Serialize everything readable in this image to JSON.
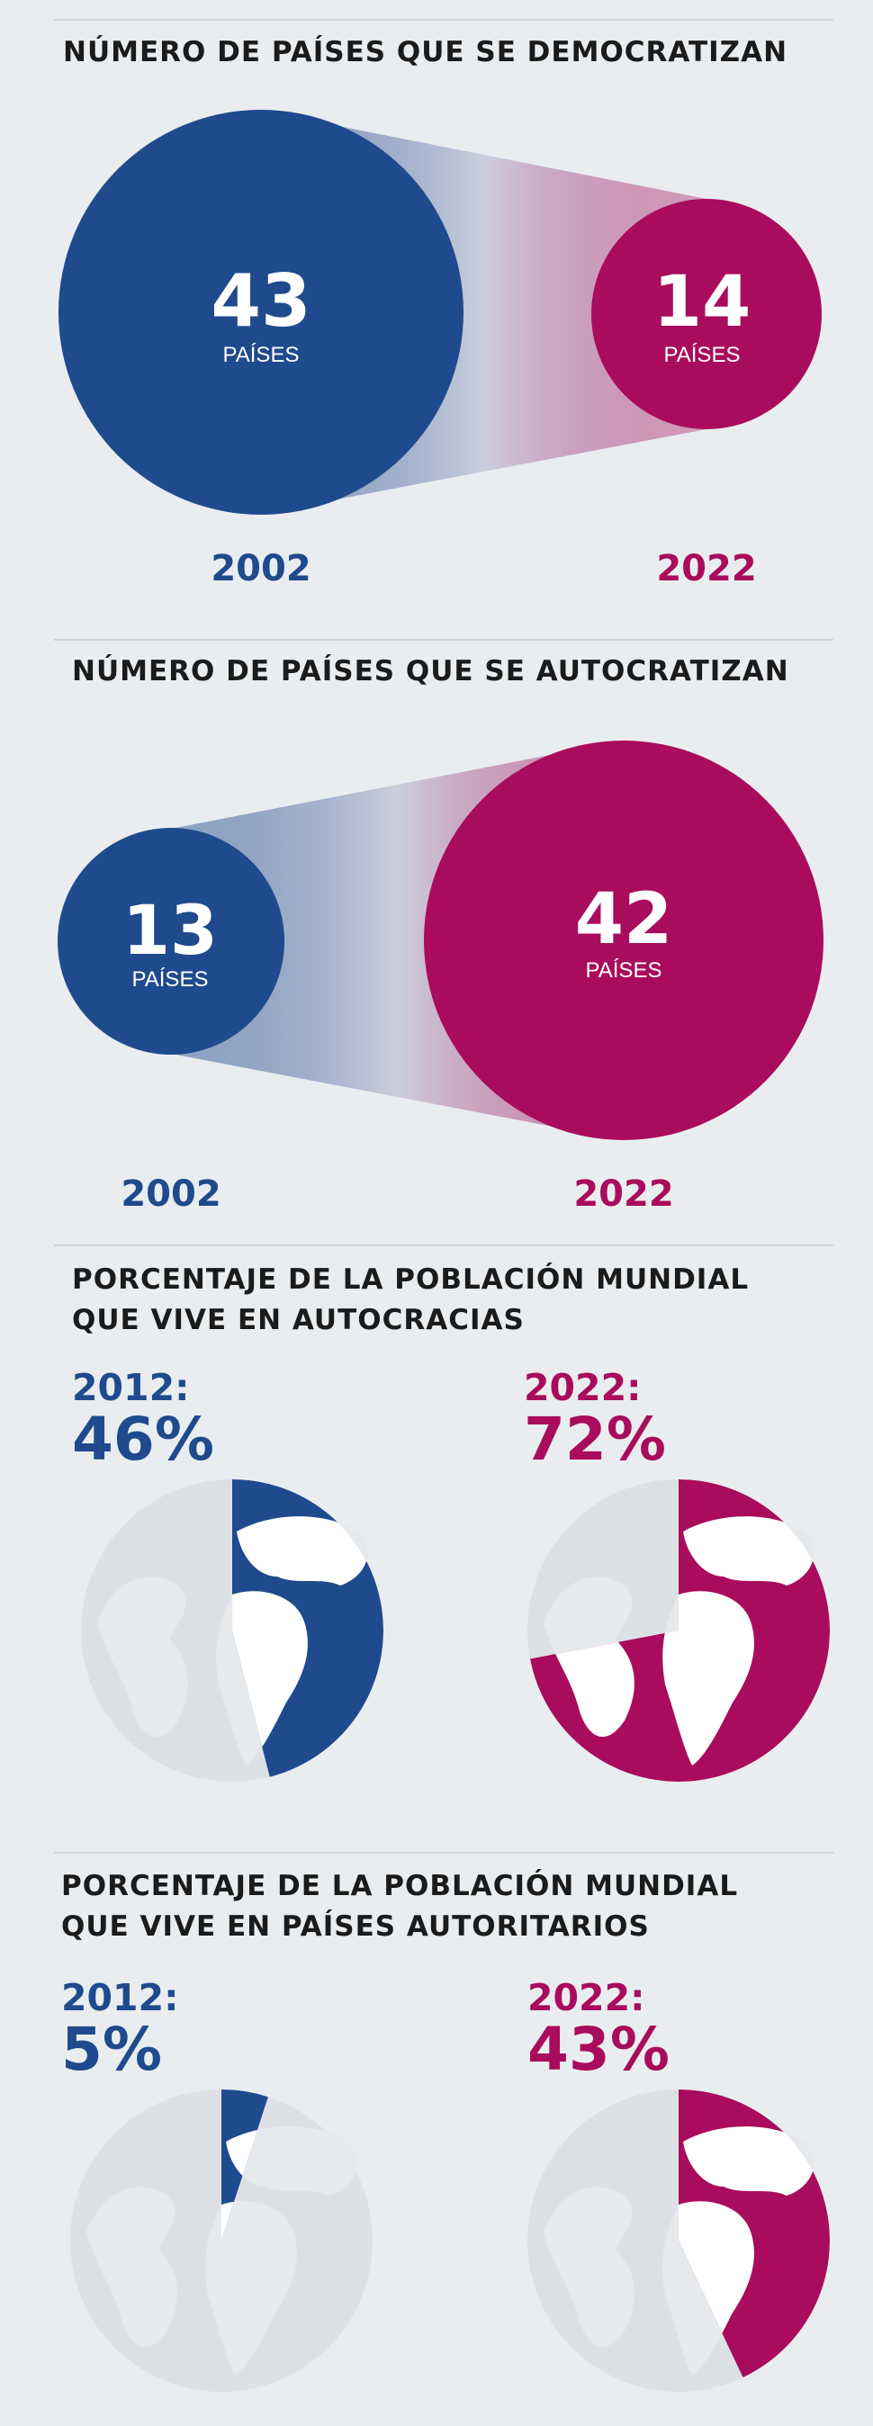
{
  "colors": {
    "blue": "#1f4a8d",
    "magenta": "#a90c5c",
    "globe_gray": "#dde1e5",
    "land": "#ffffff"
  },
  "chart_data": [
    {
      "type": "bubble",
      "title": "NÚMERO DE PAÍSES QUE SE DEMOCRATIZAN",
      "unit": "PAÍSES",
      "points": [
        {
          "year": "2002",
          "value": 43,
          "color": "#1f4a8d"
        },
        {
          "year": "2022",
          "value": 14,
          "color": "#a90c5c"
        }
      ]
    },
    {
      "type": "bubble",
      "title": "NÚMERO DE PAÍSES QUE SE AUTOCRATIZAN",
      "unit": "PAÍSES",
      "points": [
        {
          "year": "2002",
          "value": 13,
          "color": "#1f4a8d"
        },
        {
          "year": "2022",
          "value": 42,
          "color": "#a90c5c"
        }
      ]
    },
    {
      "type": "pie",
      "title_lines": [
        "PORCENTAJE DE LA POBLACIÓN MUNDIAL",
        "QUE VIVE EN AUTOCRACIAS"
      ],
      "points": [
        {
          "year_label": "2012:",
          "value": 46,
          "label": "46%",
          "color": "#1f4a8d"
        },
        {
          "year_label": "2022:",
          "value": 72,
          "label": "72%",
          "color": "#a90c5c"
        }
      ]
    },
    {
      "type": "pie",
      "title_lines": [
        "PORCENTAJE DE LA POBLACIÓN MUNDIAL",
        "QUE VIVE EN PAÍSES AUTORITARIOS"
      ],
      "points": [
        {
          "year_label": "2012:",
          "value": 5,
          "label": "5%",
          "color": "#1f4a8d"
        },
        {
          "year_label": "2022:",
          "value": 43,
          "label": "43%",
          "color": "#a90c5c"
        }
      ]
    }
  ]
}
